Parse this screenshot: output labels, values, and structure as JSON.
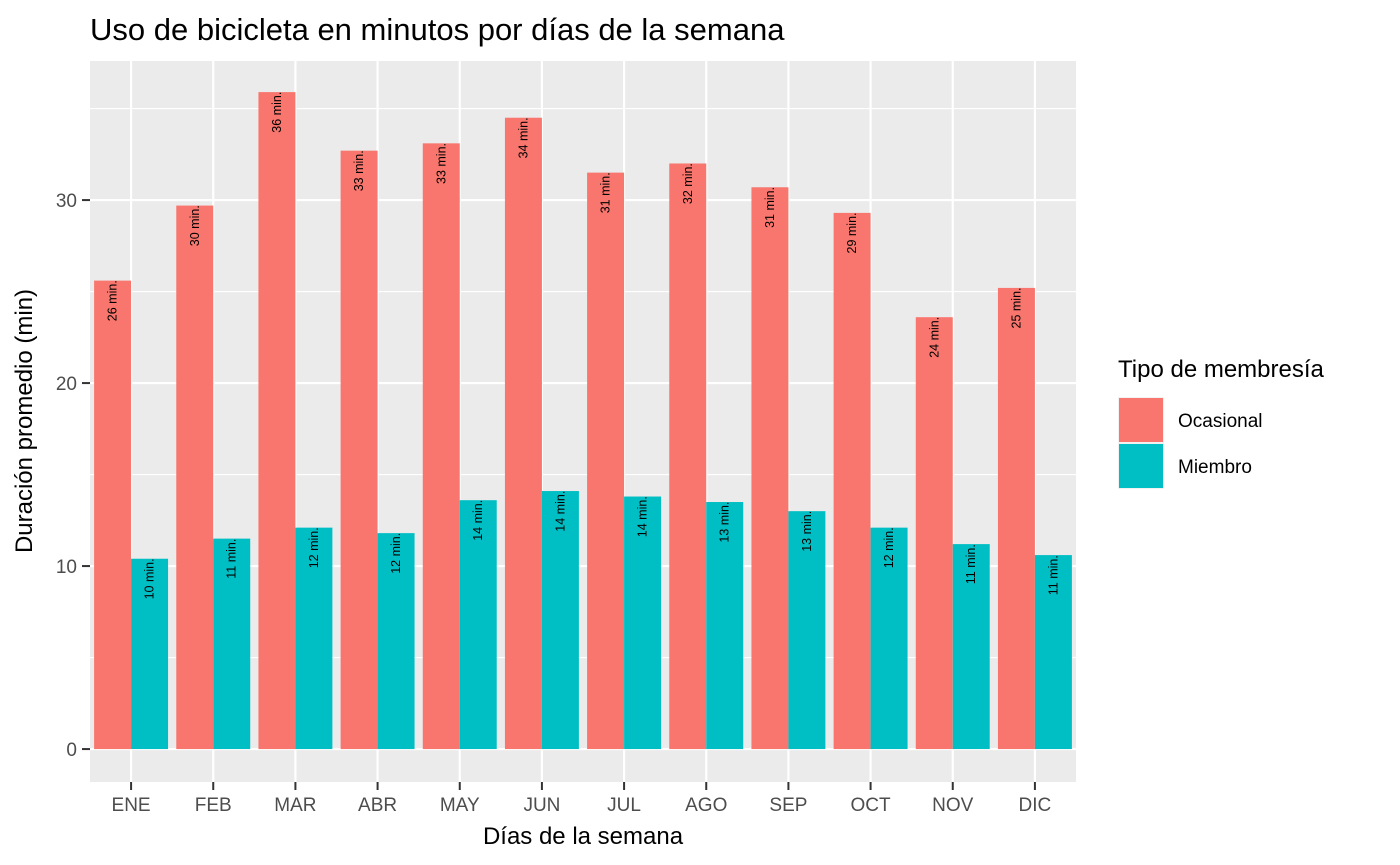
{
  "chart_data": {
    "type": "bar",
    "title": "Uso de bicicleta en minutos por días de la semana",
    "xlabel": "Días de la semana",
    "ylabel": "Duración promedio (min)",
    "categories": [
      "ENE",
      "FEB",
      "MAR",
      "ABR",
      "MAY",
      "JUN",
      "JUL",
      "AGO",
      "SEP",
      "OCT",
      "NOV",
      "DIC"
    ],
    "series": [
      {
        "name": "Ocasional",
        "color": "#F8766D",
        "values": [
          25.6,
          29.7,
          35.9,
          32.7,
          33.1,
          34.5,
          31.5,
          32.0,
          30.7,
          29.3,
          23.6,
          25.2
        ],
        "labels": [
          "26 min.",
          "30 min.",
          "36 min.",
          "33 min.",
          "33 min.",
          "34 min.",
          "31 min.",
          "32 min.",
          "31 min.",
          "29 min.",
          "24 min.",
          "25 min."
        ]
      },
      {
        "name": "Miembro",
        "color": "#00BFC4",
        "values": [
          10.4,
          11.5,
          12.1,
          11.8,
          13.6,
          14.1,
          13.8,
          13.5,
          13.0,
          12.1,
          11.2,
          10.6
        ],
        "labels": [
          "10 min.",
          "11 min.",
          "12 min.",
          "12 min.",
          "14 min.",
          "14 min.",
          "14 min.",
          "13 min.",
          "13 min.",
          "12 min.",
          "11 min.",
          "11 min."
        ]
      }
    ],
    "yticks": [
      0,
      10,
      20,
      30
    ],
    "ylim": [
      -1.8,
      37.6
    ],
    "grid": true,
    "legend": {
      "title": "Tipo de membresía",
      "position": "right"
    }
  }
}
